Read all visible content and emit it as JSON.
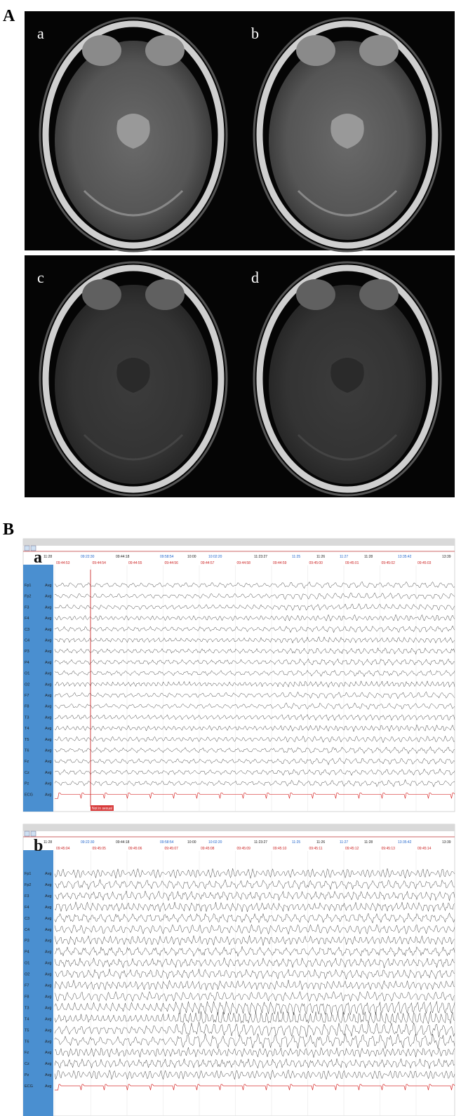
{
  "figure": {
    "panel_labels": [
      "A",
      "B"
    ]
  },
  "mri": {
    "images": [
      {
        "label": "a"
      },
      {
        "label": "b"
      },
      {
        "label": "c"
      },
      {
        "label": "d"
      }
    ]
  },
  "eeg": {
    "channels": [
      "Fp1",
      "Fp2",
      "F3",
      "F4",
      "C3",
      "C4",
      "P3",
      "P4",
      "O1",
      "O2",
      "F7",
      "F8",
      "T3",
      "T4",
      "T5",
      "T6",
      "Fz",
      "Cz",
      "Pz",
      "ECG"
    ],
    "reference": "Avg",
    "header_times": [
      "11:28",
      "09:22:30",
      "09:44:18",
      "09:58:54",
      "10:00",
      "10:02:20",
      "11:23:27",
      "11:25",
      "11:26",
      "11:27",
      "11:28",
      "13:35:42",
      "13:39"
    ],
    "panels": [
      {
        "label": "a",
        "times": [
          "09:44:53",
          "09:44:54",
          "09:44:55",
          "09:44:56",
          "09:44:57",
          "09:44:58",
          "09:44:59",
          "09:45:00",
          "09:45:01",
          "09:45:02",
          "09:45:03"
        ],
        "marker": "Not in sexual"
      },
      {
        "label": "b",
        "times": [
          "09:45:04",
          "09:45:05",
          "09:45:06",
          "09:45:07",
          "09:45:08",
          "09:45:09",
          "09:45:10",
          "09:45:11",
          "09:45:12",
          "09:45:13",
          "09:45:14"
        ]
      }
    ]
  }
}
